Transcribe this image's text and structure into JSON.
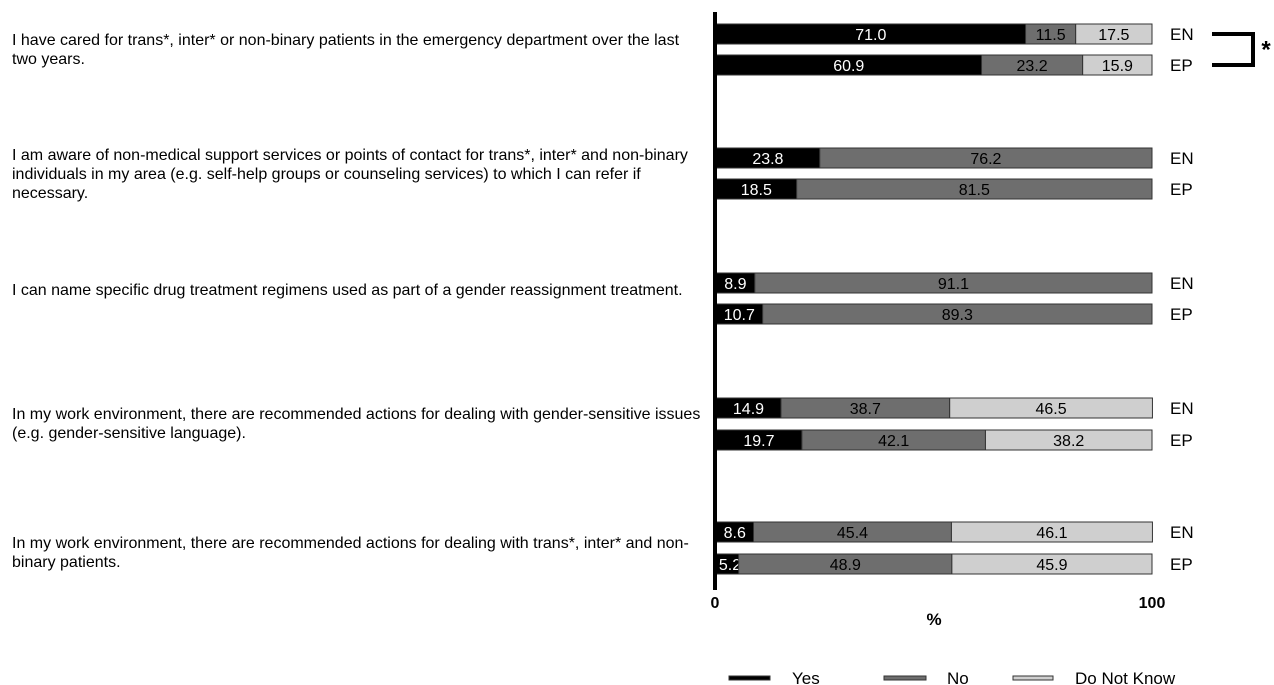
{
  "questions": [
    {
      "text": "I have cared for trans*, inter* or non-binary patients in the emergency department over the last two years."
    },
    {
      "text": "I am aware of non-medical support services or points of contact for trans*, inter* and non-binary individuals in my area (e.g. self-help groups or counseling services) to which I can refer if necessary."
    },
    {
      "text": "I can name specific drug treatment regimens used as part of a gender reassignment treatment."
    },
    {
      "text": "In my work environment, there are recommended actions for dealing with gender-sensitive issues (e.g. gender-sensitive language)."
    },
    {
      "text": "In my work environment, there are recommended actions for dealing with trans*, inter* and non-binary patients."
    }
  ],
  "chart_data": {
    "type": "bar",
    "orientation": "horizontal",
    "stacked": true,
    "xlabel": "%",
    "xlim": [
      0,
      100
    ],
    "x_ticks": [
      "0",
      "100"
    ],
    "categories": [
      {
        "question_index": 0,
        "group": "EN"
      },
      {
        "question_index": 0,
        "group": "EP"
      },
      {
        "question_index": 1,
        "group": "EN"
      },
      {
        "question_index": 1,
        "group": "EP"
      },
      {
        "question_index": 2,
        "group": "EN"
      },
      {
        "question_index": 2,
        "group": "EP"
      },
      {
        "question_index": 3,
        "group": "EN"
      },
      {
        "question_index": 3,
        "group": "EP"
      },
      {
        "question_index": 4,
        "group": "EN"
      },
      {
        "question_index": 4,
        "group": "EP"
      }
    ],
    "series": [
      {
        "name": "Yes",
        "color": "#000000",
        "label_color": "#ffffff",
        "values": [
          71.0,
          60.9,
          23.8,
          18.5,
          8.9,
          10.7,
          14.9,
          19.7,
          8.6,
          5.2
        ],
        "labels": [
          "71.0",
          "60.9",
          "23.8",
          "18.5",
          "8.9",
          "10.7",
          "14.9",
          "19.7",
          "8.6",
          "5.2"
        ]
      },
      {
        "name": "No",
        "color": "#6e6e6e",
        "label_color": "#000000",
        "values": [
          11.5,
          23.2,
          76.2,
          81.5,
          91.1,
          89.3,
          38.7,
          42.1,
          45.4,
          48.9
        ],
        "labels": [
          "11.5",
          "23.2",
          "76.2",
          "81.5",
          "91.1",
          "89.3",
          "38.7",
          "42.1",
          "45.4",
          "48.9"
        ]
      },
      {
        "name": "Do Not Know",
        "color": "#cfcfcf",
        "label_color": "#000000",
        "values": [
          17.5,
          15.9,
          0,
          0,
          0,
          0,
          46.5,
          38.2,
          46.1,
          45.9
        ],
        "labels": [
          "17.5",
          "15.9",
          "",
          "",
          "",
          "",
          "46.5",
          "38.2",
          "46.1",
          "45.9"
        ]
      }
    ],
    "significance": [
      {
        "question_index": 0,
        "marker": "*"
      }
    ],
    "legend": {
      "position": "bottom",
      "items": [
        "Yes",
        "No",
        "Do Not Know"
      ]
    },
    "grid": false
  }
}
